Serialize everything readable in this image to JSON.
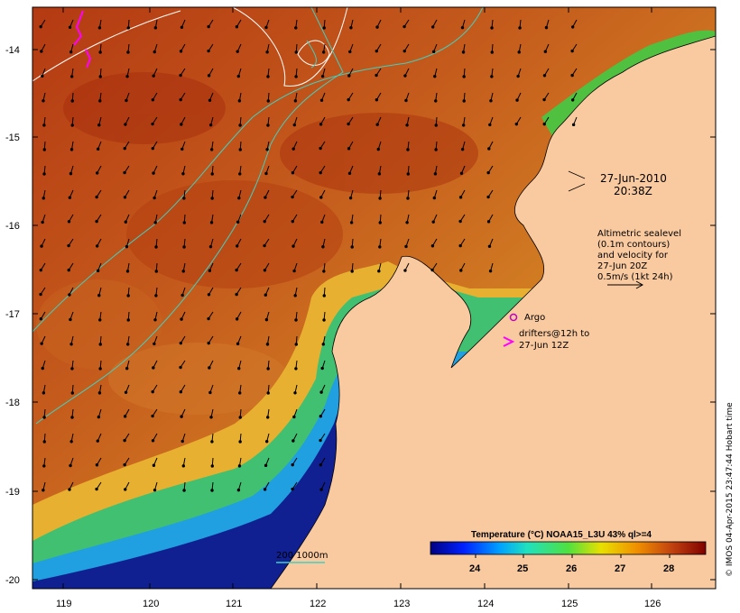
{
  "map": {
    "title_time": {
      "date": "27-Jun-2010",
      "time": "20:38Z"
    },
    "lat_labels": [
      "-14",
      "-15",
      "-16",
      "-17",
      "-18",
      "-19",
      "-20"
    ],
    "lon_labels": [
      "119",
      "120",
      "121",
      "122",
      "123",
      "124",
      "125",
      "126"
    ],
    "altimetry_note": [
      "Altimetric sealevel",
      "(0.1m contours)",
      "and velocity for",
      "27-Jun 20Z",
      "0.5m/s (1kt 24h)"
    ],
    "argo_label": "Argo",
    "drifters_note": [
      "drifters@12h to",
      "27-Jun 12Z"
    ],
    "bathymetry_label": "200  1000m",
    "colorbar": {
      "title": "Temperature (°C) NOAA15_L3U 43% ql>=4",
      "ticks": [
        "24",
        "25",
        "26",
        "27",
        "28"
      ]
    },
    "credit": "© IMOS 04-Apr-2015 23:47:44 Hobart time",
    "colors": {
      "land": "#f9c9a0",
      "warm": "#c0501a",
      "cold": "#101090",
      "contour_sealevel": "#ffffff",
      "contour_bathy": "#40d0c0",
      "drifter": "#ff00ff"
    }
  }
}
